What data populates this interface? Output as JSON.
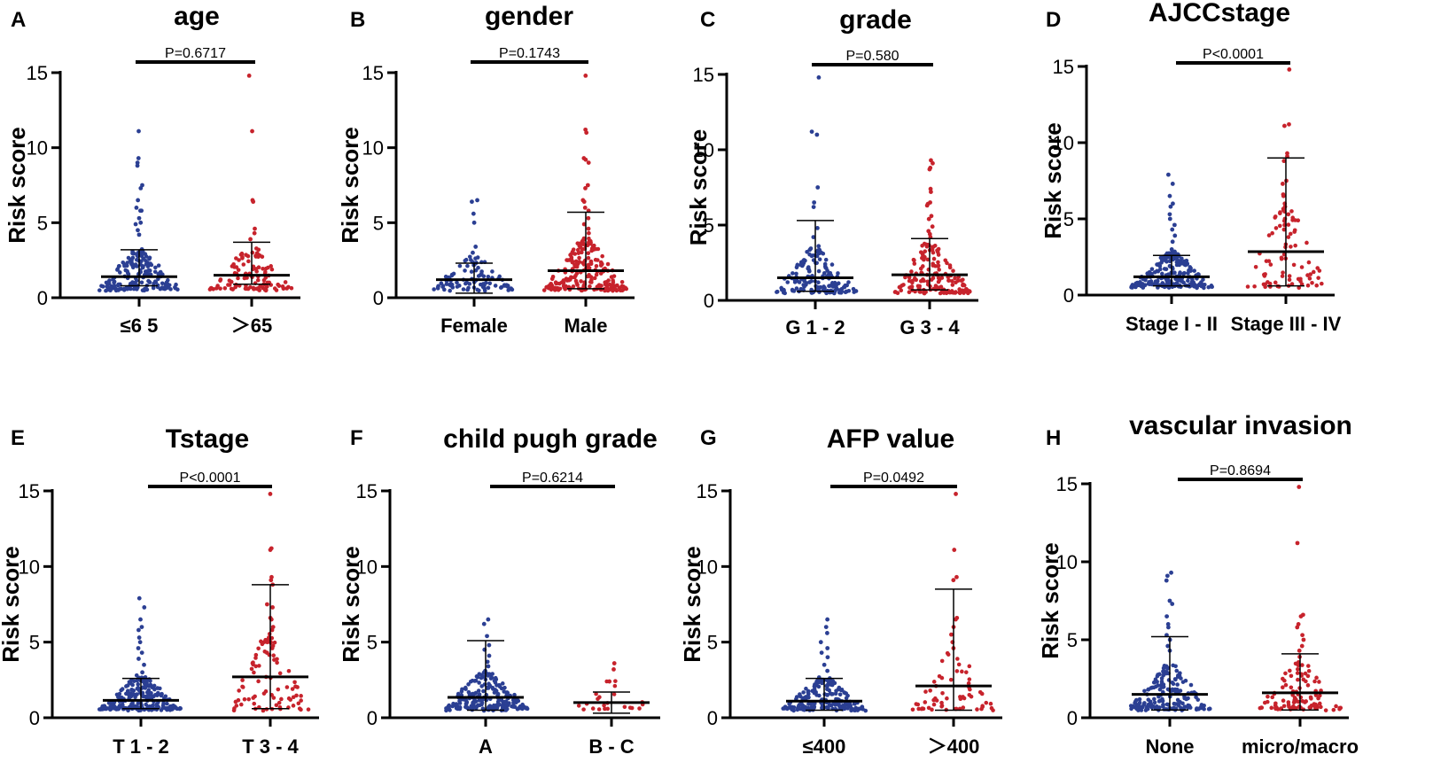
{
  "figure": {
    "ylabel": "Risk score",
    "yticks": [
      "0",
      "5",
      "10",
      "15"
    ]
  },
  "colors": {
    "group1": "#2b3f93",
    "group2": "#c7232c",
    "axis": "#000000"
  },
  "chart_data": [
    {
      "type": "scatter",
      "panel": "A",
      "title": "age",
      "ylabel": "Risk score",
      "ylim": [
        0,
        15
      ],
      "yticks": [
        0,
        5,
        10,
        15
      ],
      "pvalue": "P=0.6717",
      "groups": [
        {
          "label": "≤6 5",
          "color": "blue",
          "n": 190,
          "mean": 1.4,
          "err_top": 3.2,
          "err_bottom": 0.8,
          "outliers": [
            11.1,
            9.3,
            9.0,
            8.8,
            7.5,
            7.3,
            6.5,
            6.0,
            5.8,
            5.8,
            5.3,
            5.0,
            4.9,
            4.5,
            4.2
          ]
        },
        {
          "label": "＞65",
          "color": "red",
          "n": 110,
          "mean": 1.5,
          "err_top": 3.7,
          "err_bottom": 0.9,
          "outliers": [
            14.8,
            11.1,
            6.5,
            6.4,
            4.6,
            4.3,
            3.9
          ]
        }
      ]
    },
    {
      "type": "scatter",
      "panel": "B",
      "title": "gender",
      "ylabel": "Risk score",
      "ylim": [
        0,
        15
      ],
      "yticks": [
        0,
        5,
        10,
        15
      ],
      "pvalue": "P=0.1743",
      "groups": [
        {
          "label": "Female",
          "color": "blue",
          "n": 95,
          "mean": 1.2,
          "err_top": 2.3,
          "err_bottom": 0.3,
          "outliers": [
            6.5,
            6.4,
            5.6,
            5.0,
            3.4,
            3.0
          ]
        },
        {
          "label": "Male",
          "color": "red",
          "n": 210,
          "mean": 1.8,
          "err_top": 5.7,
          "err_bottom": 0.6,
          "outliers": [
            14.8,
            11.2,
            11.0,
            9.3,
            9.2,
            9.0,
            7.5,
            7.3,
            6.5,
            6.4,
            6.0,
            5.8,
            5.3,
            4.9,
            4.6,
            4.3
          ]
        }
      ]
    },
    {
      "type": "scatter",
      "panel": "C",
      "title": "grade",
      "ylabel": "Risk score",
      "ylim": [
        0,
        15
      ],
      "yticks": [
        0,
        5,
        10,
        15
      ],
      "pvalue": "P=0.580",
      "groups": [
        {
          "label": "G 1 - 2",
          "color": "blue",
          "n": 160,
          "mean": 1.5,
          "err_top": 5.3,
          "err_bottom": 0.6,
          "outliers": [
            14.8,
            11.2,
            11.0,
            7.5,
            6.5,
            6.2,
            4.8,
            4.2,
            3.6
          ]
        },
        {
          "label": "G 3 - 4",
          "color": "red",
          "n": 150,
          "mean": 1.7,
          "err_top": 4.1,
          "err_bottom": 0.7,
          "outliers": [
            9.3,
            9.1,
            8.8,
            8.7,
            7.4,
            7.2,
            6.5,
            6.4,
            6.3,
            5.6,
            5.4,
            4.9,
            4.6,
            4.4,
            4.2
          ]
        }
      ]
    },
    {
      "type": "scatter",
      "panel": "D",
      "title": "AJCCstage",
      "ylabel": "Risk score",
      "ylim": [
        0,
        15
      ],
      "yticks": [
        0,
        5,
        10,
        15
      ],
      "pvalue": "P<0.0001",
      "groups": [
        {
          "label": "Stage I - II",
          "color": "blue",
          "n": 230,
          "mean": 1.2,
          "err_top": 2.6,
          "err_bottom": 0.6,
          "outliers": [
            7.9,
            7.3,
            6.5,
            6.0,
            5.8,
            5.3,
            5.0,
            4.6,
            4.3,
            3.9,
            3.5,
            3.0
          ]
        },
        {
          "label": "Stage III - IV",
          "color": "red",
          "n": 75,
          "mean": 2.85,
          "err_top": 9.0,
          "err_bottom": 0.6,
          "outliers": [
            14.8,
            11.2,
            11.1,
            9.3,
            9.1,
            8.8,
            7.5,
            7.3,
            6.6,
            6.5,
            6.0,
            5.8,
            5.3,
            5.0,
            4.6,
            4.3
          ]
        }
      ]
    },
    {
      "type": "scatter",
      "panel": "E",
      "title": "Tstage",
      "ylabel": "Risk score",
      "ylim": [
        0,
        15
      ],
      "yticks": [
        0,
        5,
        10,
        15
      ],
      "pvalue": "P<0.0001",
      "groups": [
        {
          "label": "T 1 - 2",
          "color": "blue",
          "n": 230,
          "mean": 1.15,
          "err_top": 2.6,
          "err_bottom": 0.6,
          "outliers": [
            7.9,
            7.3,
            6.5,
            6.0,
            5.8,
            5.3,
            5.0,
            4.6,
            4.3,
            3.9,
            3.5,
            3.0
          ]
        },
        {
          "label": "T 3 - 4",
          "color": "red",
          "n": 80,
          "mean": 2.7,
          "err_top": 8.8,
          "err_bottom": 0.6,
          "outliers": [
            14.8,
            11.2,
            11.1,
            9.3,
            9.1,
            8.8,
            7.5,
            7.3,
            6.6,
            6.5,
            6.0,
            5.8,
            5.3,
            5.0,
            4.6,
            4.3
          ]
        }
      ]
    },
    {
      "type": "scatter",
      "panel": "F",
      "title": "child pugh grade",
      "ylabel": "Risk score",
      "ylim": [
        0,
        15
      ],
      "yticks": [
        0,
        5,
        10,
        15
      ],
      "pvalue": "P=0.6214",
      "groups": [
        {
          "label": "A",
          "color": "blue",
          "n": 210,
          "mean": 1.35,
          "err_top": 5.1,
          "err_bottom": 0.5,
          "outliers": [
            6.5,
            6.2,
            5.4,
            4.8,
            4.5,
            4.1,
            3.7,
            3.4,
            3.1
          ]
        },
        {
          "label": "B - C",
          "color": "red",
          "n": 22,
          "mean": 1.0,
          "err_top": 1.7,
          "err_bottom": 0.3,
          "outliers": [
            3.6,
            3.2,
            2.4
          ]
        }
      ]
    },
    {
      "type": "scatter",
      "panel": "G",
      "title": "AFP value",
      "ylabel": "Risk score",
      "ylim": [
        0,
        15
      ],
      "yticks": [
        0,
        5,
        10,
        15
      ],
      "pvalue": "P=0.0492",
      "groups": [
        {
          "label": "≤400",
          "color": "blue",
          "n": 200,
          "mean": 1.1,
          "err_top": 2.6,
          "err_bottom": 0.5,
          "outliers": [
            6.5,
            6.0,
            5.6,
            5.0,
            4.6,
            4.3,
            4.0,
            3.5,
            3.1
          ]
        },
        {
          "label": "＞400",
          "color": "red",
          "n": 60,
          "mean": 2.1,
          "err_top": 8.5,
          "err_bottom": 0.5,
          "outliers": [
            14.8,
            11.1,
            9.3,
            9.1,
            6.6,
            6.5,
            6.0,
            5.5,
            5.0,
            4.6
          ]
        }
      ]
    },
    {
      "type": "scatter",
      "panel": "H",
      "title": "vascular invasion",
      "ylabel": "Risk score",
      "ylim": [
        0,
        15
      ],
      "yticks": [
        0,
        5,
        10,
        15
      ],
      "pvalue": "P=0.8694",
      "groups": [
        {
          "label": "None",
          "color": "blue",
          "n": 175,
          "mean": 1.5,
          "err_top": 5.2,
          "err_bottom": 0.5,
          "outliers": [
            9.3,
            9.1,
            8.8,
            7.5,
            7.3,
            6.5,
            6.0,
            5.8,
            5.3,
            5.0,
            4.6,
            4.3
          ]
        },
        {
          "label": "micro/macro",
          "color": "red",
          "n": 100,
          "mean": 1.6,
          "err_top": 4.1,
          "err_bottom": 0.5,
          "outliers": [
            14.8,
            11.2,
            6.6,
            6.5,
            6.0,
            5.8,
            5.3,
            5.0,
            4.6,
            4.3,
            3.9
          ]
        }
      ]
    }
  ]
}
